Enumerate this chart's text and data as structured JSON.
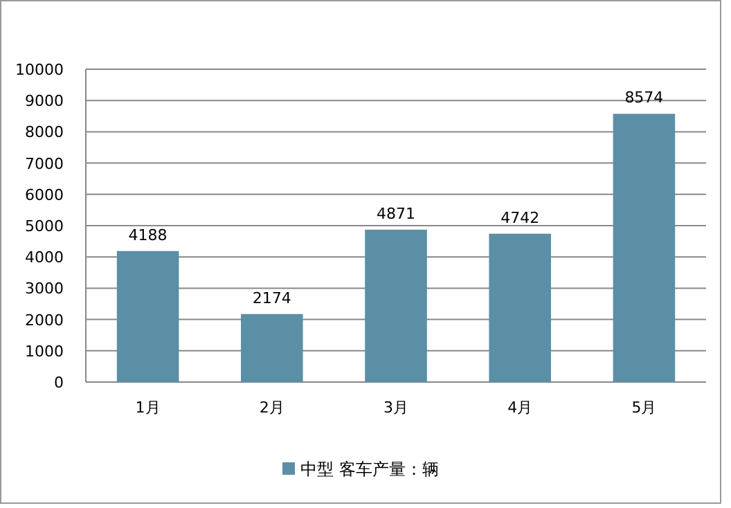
{
  "chart_data": {
    "type": "bar",
    "categories": [
      "1月",
      "2月",
      "3月",
      "4月",
      "5月"
    ],
    "series": [
      {
        "name": "中型 客车产量：辆",
        "color": "#5b8fa6",
        "values": [
          4188,
          2174,
          4871,
          4742,
          8574
        ]
      }
    ],
    "ylim": [
      0,
      10000
    ],
    "yticks": [
      0,
      1000,
      2000,
      3000,
      4000,
      5000,
      6000,
      7000,
      8000,
      9000,
      10000
    ],
    "grid": "y",
    "legend": "bottom",
    "data_labels": true
  }
}
